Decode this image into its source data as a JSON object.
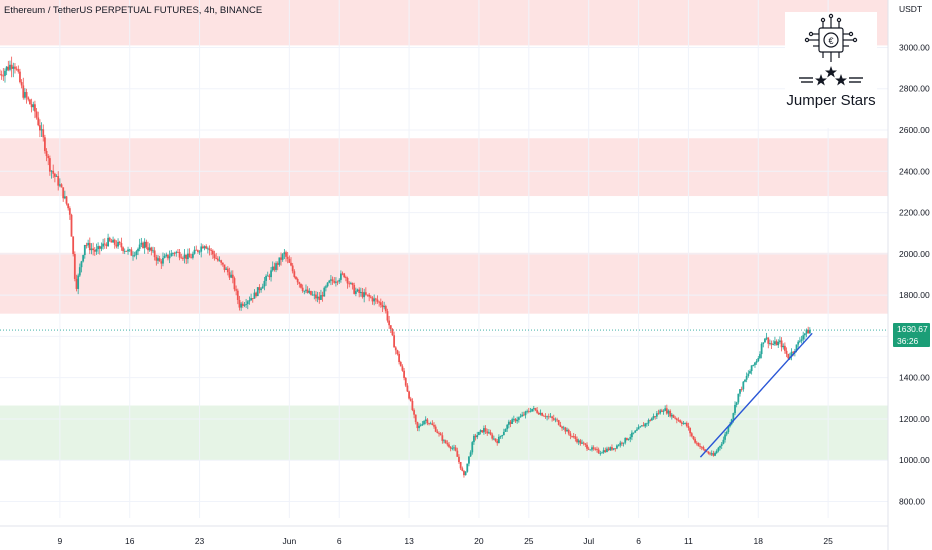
{
  "title": "Ethereum / TetherUS PERPETUAL FUTURES, 4h, BINANCE",
  "logo": {
    "text": "Jumper Stars",
    "icon": "circuit-coin-stars-icon"
  },
  "price_badge": {
    "price": "1630.67",
    "countdown": "36:26",
    "color": "#1b9e77"
  },
  "colors": {
    "up": "#26a69a",
    "down": "#ef5350",
    "resistance_zone": "#fde3e3",
    "support_zone": "#e6f4e6",
    "trendline": "#2a56d6",
    "price_line": "#26a69a"
  },
  "chart_data": {
    "type": "candlestick",
    "title": "Ethereum / TetherUS PERPETUAL FUTURES, 4h, BINANCE",
    "y_axis_unit": "USDT",
    "ylim": [
      720,
      3230
    ],
    "y_ticks": [
      800,
      1000,
      1200,
      1400,
      1600,
      1800,
      2000,
      2200,
      2400,
      2600,
      2800,
      3000
    ],
    "y_tick_labels": [
      "800.00",
      "1000.00",
      "1200.00",
      "1400.00",
      "1600.00",
      "1800.00",
      "2000.00",
      "2200.00",
      "2400.00",
      "2600.00",
      "2800.00",
      "3000.00"
    ],
    "x_ticks": [
      {
        "label": "9",
        "day": 9
      },
      {
        "label": "16",
        "day": 16
      },
      {
        "label": "23",
        "day": 23
      },
      {
        "label": "Jun",
        "day": 32
      },
      {
        "label": "6",
        "day": 37
      },
      {
        "label": "13",
        "day": 44
      },
      {
        "label": "20",
        "day": 51
      },
      {
        "label": "25",
        "day": 56
      },
      {
        "label": "Jul",
        "day": 62
      },
      {
        "label": "6",
        "day": 67
      },
      {
        "label": "11",
        "day": 72
      },
      {
        "label": "18",
        "day": 79
      },
      {
        "label": "25",
        "day": 86
      }
    ],
    "x_domain_days": [
      3,
      92
    ],
    "price_path": [
      [
        3.0,
        2870
      ],
      [
        4.4,
        2930
      ],
      [
        5.3,
        2780
      ],
      [
        6.5,
        2690
      ],
      [
        7.3,
        2560
      ],
      [
        8.0,
        2420
      ],
      [
        9.0,
        2330
      ],
      [
        10.0,
        2200
      ],
      [
        10.6,
        1830
      ],
      [
        11.5,
        2050
      ],
      [
        12.6,
        2010
      ],
      [
        13.8,
        2060
      ],
      [
        15.0,
        2040
      ],
      [
        16.2,
        2000
      ],
      [
        17.5,
        2050
      ],
      [
        19.0,
        1960
      ],
      [
        20.5,
        2010
      ],
      [
        22.0,
        1980
      ],
      [
        23.5,
        2050
      ],
      [
        24.8,
        1970
      ],
      [
        26.2,
        1890
      ],
      [
        27.0,
        1750
      ],
      [
        28.5,
        1800
      ],
      [
        30.0,
        1900
      ],
      [
        31.5,
        2000
      ],
      [
        32.5,
        1900
      ],
      [
        33.5,
        1820
      ],
      [
        35.0,
        1780
      ],
      [
        36.0,
        1860
      ],
      [
        37.5,
        1900
      ],
      [
        38.5,
        1820
      ],
      [
        40.0,
        1790
      ],
      [
        41.5,
        1750
      ],
      [
        42.5,
        1560
      ],
      [
        43.2,
        1450
      ],
      [
        44.0,
        1310
      ],
      [
        44.8,
        1150
      ],
      [
        45.6,
        1200
      ],
      [
        46.5,
        1160
      ],
      [
        47.5,
        1090
      ],
      [
        48.6,
        1050
      ],
      [
        49.5,
        920
      ],
      [
        50.5,
        1110
      ],
      [
        51.5,
        1150
      ],
      [
        52.8,
        1090
      ],
      [
        54.0,
        1180
      ],
      [
        55.2,
        1210
      ],
      [
        56.3,
        1250
      ],
      [
        57.5,
        1220
      ],
      [
        58.8,
        1190
      ],
      [
        60.0,
        1130
      ],
      [
        61.0,
        1090
      ],
      [
        62.0,
        1060
      ],
      [
        63.0,
        1040
      ],
      [
        64.5,
        1060
      ],
      [
        66.0,
        1110
      ],
      [
        67.0,
        1150
      ],
      [
        68.5,
        1210
      ],
      [
        69.5,
        1250
      ],
      [
        70.5,
        1210
      ],
      [
        71.8,
        1170
      ],
      [
        72.5,
        1100
      ],
      [
        73.5,
        1050
      ],
      [
        74.5,
        1020
      ],
      [
        75.5,
        1100
      ],
      [
        76.3,
        1200
      ],
      [
        77.0,
        1320
      ],
      [
        78.0,
        1420
      ],
      [
        79.0,
        1500
      ],
      [
        79.6,
        1600
      ],
      [
        80.3,
        1560
      ],
      [
        81.2,
        1570
      ],
      [
        82.0,
        1500
      ],
      [
        82.8,
        1550
      ],
      [
        83.5,
        1610
      ],
      [
        84.2,
        1630
      ]
    ],
    "current_price": 1630.67,
    "zones": [
      {
        "type": "resistance",
        "from": 3010,
        "to": 3230
      },
      {
        "type": "resistance",
        "from": 2280,
        "to": 2560
      },
      {
        "type": "resistance",
        "from": 1710,
        "to": 2005
      },
      {
        "type": "support",
        "from": 1000,
        "to": 1265
      }
    ],
    "trendline": {
      "start": [
        73.2,
        1015
      ],
      "end": [
        84.4,
        1615
      ]
    }
  }
}
